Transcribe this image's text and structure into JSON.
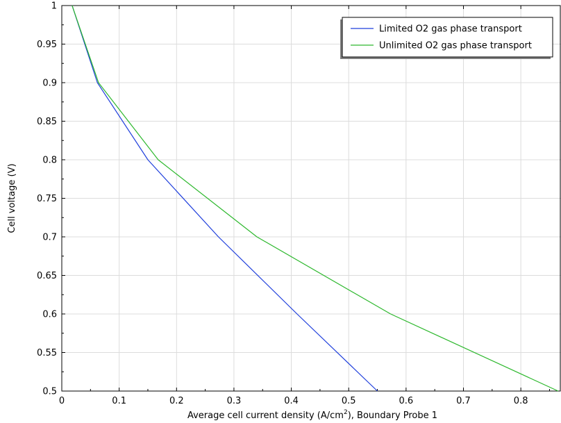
{
  "chart_data": {
    "type": "line",
    "xlabel_main": "Average cell current density (A/cm",
    "xlabel_sup": "2",
    "xlabel_tail": "), Boundary Probe 1",
    "ylabel": "Cell voltage (V)",
    "xlim": [
      0,
      0.87
    ],
    "ylim": [
      0.5,
      1.0
    ],
    "x_ticks": [
      0,
      0.1,
      0.2,
      0.3,
      0.4,
      0.5,
      0.6,
      0.7,
      0.8
    ],
    "x_tick_labels": [
      "0",
      "0.1",
      "0.2",
      "0.3",
      "0.4",
      "0.5",
      "0.6",
      "0.7",
      "0.8"
    ],
    "y_ticks": [
      0.5,
      0.55,
      0.6,
      0.65,
      0.7,
      0.75,
      0.8,
      0.85,
      0.9,
      0.95,
      1.0
    ],
    "y_tick_labels": [
      "0.5",
      "0.55",
      "0.6",
      "0.65",
      "0.7",
      "0.75",
      "0.8",
      "0.85",
      "0.9",
      "0.95",
      "1"
    ],
    "grid": true,
    "legend_position": "top-right",
    "series": [
      {
        "name": "Limited O2 gas phase transport",
        "color": "#1f3fdc",
        "points": [
          [
            0.018,
            1.0
          ],
          [
            0.062,
            0.9
          ],
          [
            0.15,
            0.8
          ],
          [
            0.273,
            0.7
          ],
          [
            0.41,
            0.6
          ],
          [
            0.55,
            0.5
          ]
        ]
      },
      {
        "name": "Unlimited O2 gas phase transport",
        "color": "#2db82d",
        "points": [
          [
            0.018,
            1.0
          ],
          [
            0.064,
            0.9
          ],
          [
            0.168,
            0.8
          ],
          [
            0.34,
            0.7
          ],
          [
            0.573,
            0.6
          ],
          [
            0.865,
            0.5
          ]
        ]
      }
    ]
  }
}
